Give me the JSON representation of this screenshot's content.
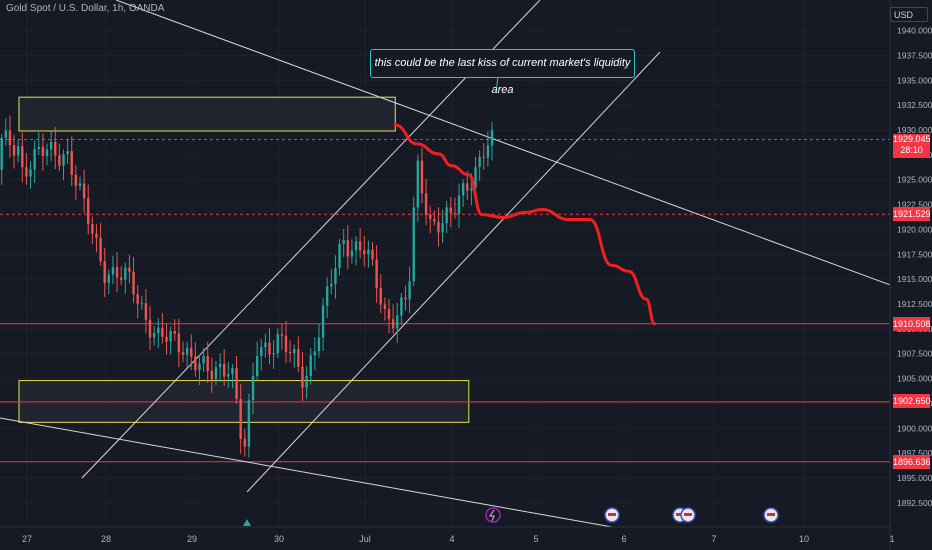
{
  "chart_data": {
    "type": "candlestick",
    "title": "Gold Spot / U.S. Dollar, 1h, OANDA",
    "currency": "USD",
    "y_range": [
      1890.5,
      1943
    ],
    "y_ticks": [
      "1940.000",
      "1937.500",
      "1935.000",
      "1932.500",
      "1930.000",
      "1927.500",
      "1925.000",
      "1922.500",
      "1920.000",
      "1917.500",
      "1915.000",
      "1912.500",
      "1910.000",
      "1907.500",
      "1905.000",
      "1902.500",
      "1900.000",
      "1897.500",
      "1895.000",
      "1892.500"
    ],
    "x_ticks": [
      "27",
      "28",
      "29",
      "30",
      "Jul",
      "4",
      "5",
      "6",
      "7",
      "10",
      "1"
    ],
    "price_badges": [
      {
        "label": "1929.045",
        "sub": "28:10",
        "value": 1929.045
      },
      {
        "label": "1921.529",
        "value": 1921.529
      },
      {
        "label": "1910.508",
        "value": 1910.508
      },
      {
        "label": "1902.650",
        "value": 1902.65
      },
      {
        "label": "1896.636",
        "value": 1896.636
      }
    ],
    "horizontal_levels": [
      1929.045,
      1921.529,
      1910.508,
      1902.65,
      1896.636
    ],
    "zones": [
      {
        "name": "upper-supply-zone",
        "y_top": 1933.3,
        "y_bottom": 1929.9,
        "x_start": 0,
        "x_end": 4.35
      },
      {
        "name": "lower-demand-zone",
        "y_top": 1904.8,
        "y_bottom": 1900.6,
        "x_start": 0,
        "x_end": 5.2
      }
    ],
    "annotation": "this could be the last kiss of current market's liquidity area",
    "projection": [
      [
        4.35,
        1930.5
      ],
      [
        4.6,
        1928.6
      ],
      [
        4.85,
        1927.6
      ],
      [
        5.0,
        1926.4
      ],
      [
        5.2,
        1925.5
      ],
      [
        5.35,
        1921.5
      ],
      [
        5.6,
        1921.2
      ],
      [
        5.85,
        1921.7
      ],
      [
        6.05,
        1922.0
      ],
      [
        6.35,
        1921.0
      ],
      [
        6.6,
        1921.0
      ],
      [
        6.85,
        1916.4
      ],
      [
        7.05,
        1915.8
      ],
      [
        7.25,
        1913.0
      ],
      [
        7.35,
        1910.5
      ]
    ],
    "colors": {
      "up": "#26a69a",
      "down": "#ef5350",
      "projection": "#f02020",
      "zone": "#e8e04a",
      "callout_border": "#2ec4c8",
      "level": "#f23645"
    }
  }
}
